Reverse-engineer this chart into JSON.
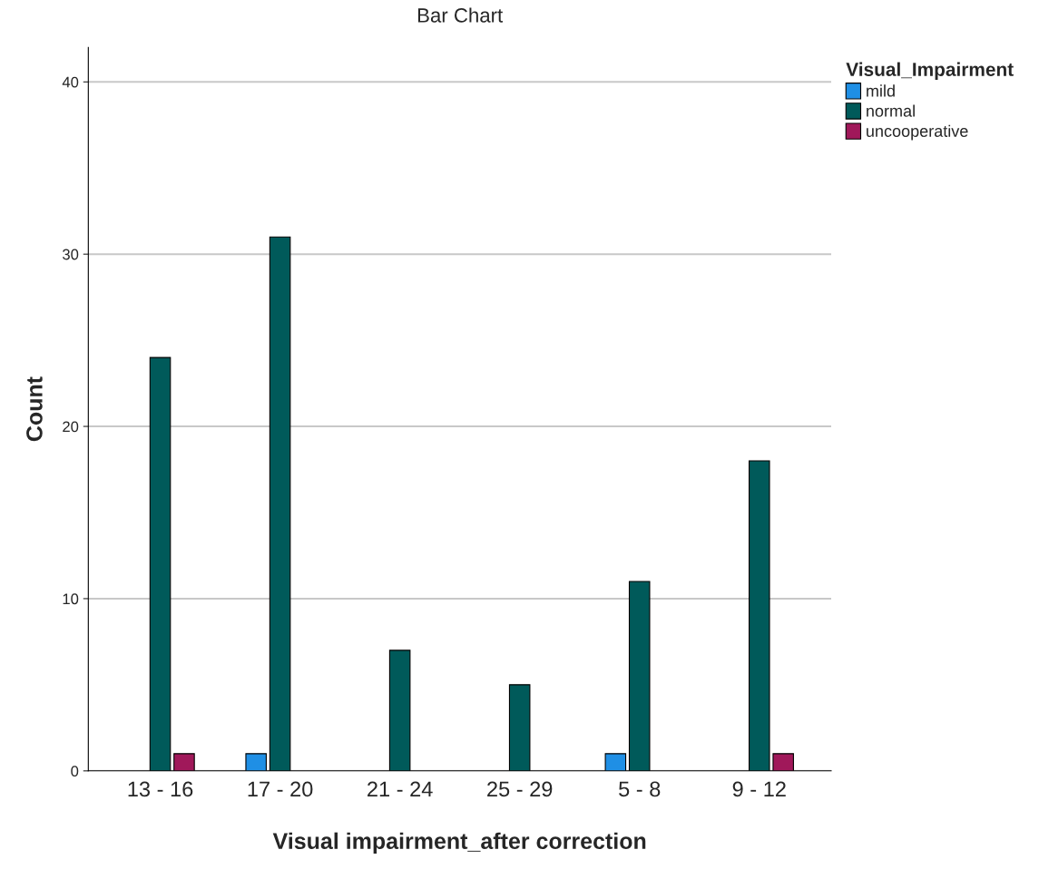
{
  "chart_data": {
    "type": "bar",
    "title": "Bar Chart",
    "xlabel": "Visual impairment_after correction",
    "ylabel": "Count",
    "legend_title": "Visual_Impairment",
    "categories": [
      "13 - 16",
      "17 - 20",
      "21 - 24",
      "25 - 29",
      "5 - 8",
      "9 - 12"
    ],
    "series": [
      {
        "name": "mild",
        "color": "#1f8fe5",
        "values": [
          null,
          1,
          null,
          null,
          1,
          null
        ]
      },
      {
        "name": "normal",
        "color": "#005a5a",
        "values": [
          24,
          31,
          7,
          5,
          11,
          18
        ]
      },
      {
        "name": "uncooperative",
        "color": "#a0185a",
        "values": [
          1,
          null,
          null,
          null,
          null,
          1
        ]
      }
    ],
    "ylim": [
      0,
      42
    ],
    "yticks": [
      0,
      10,
      20,
      30,
      40
    ],
    "grid": "y",
    "legend": "top right"
  }
}
